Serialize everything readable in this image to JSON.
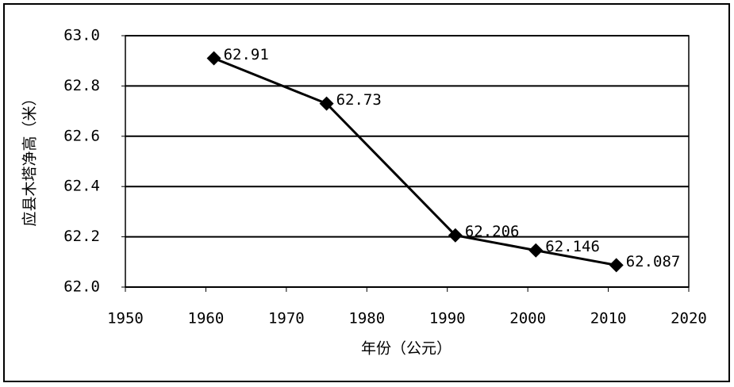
{
  "chart_data": {
    "type": "line",
    "x_label": "年份（公元）",
    "y_label": "应县木塔净高（米）",
    "x": [
      1961,
      1975,
      1991,
      2001,
      2011
    ],
    "series": [
      {
        "color": "#000000",
        "values": [
          62.91,
          62.73,
          62.206,
          62.146,
          62.087
        ]
      }
    ],
    "xlim": [
      1950,
      2020
    ],
    "xticks": [
      1950,
      1960,
      1970,
      1980,
      1990,
      2000,
      2010,
      2020
    ],
    "ylim": [
      62.0,
      63.0
    ],
    "yticks": [
      {
        "value": 62.0,
        "label": "62.0"
      },
      {
        "value": 62.2,
        "label": "62.2"
      },
      62.4,
      62.6,
      62.8,
      {
        "value": 63.0,
        "label": "63.0"
      }
    ],
    "grid": true
  }
}
